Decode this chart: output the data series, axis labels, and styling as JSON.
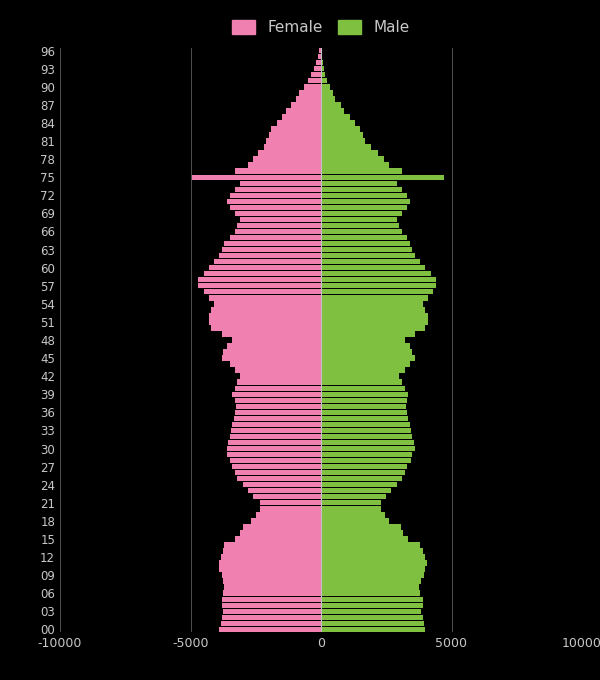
{
  "ages": [
    0,
    1,
    2,
    3,
    4,
    5,
    6,
    7,
    8,
    9,
    10,
    11,
    12,
    13,
    14,
    15,
    16,
    17,
    18,
    19,
    20,
    21,
    22,
    23,
    24,
    25,
    26,
    27,
    28,
    29,
    30,
    31,
    32,
    33,
    34,
    35,
    36,
    37,
    38,
    39,
    40,
    41,
    42,
    43,
    44,
    45,
    46,
    47,
    48,
    49,
    50,
    51,
    52,
    53,
    54,
    55,
    56,
    57,
    58,
    59,
    60,
    61,
    62,
    63,
    64,
    65,
    66,
    67,
    68,
    69,
    70,
    71,
    72,
    73,
    74,
    75,
    76,
    77,
    78,
    79,
    80,
    81,
    82,
    83,
    84,
    85,
    86,
    87,
    88,
    89,
    90,
    91,
    92,
    93,
    94,
    95,
    96
  ],
  "female": [
    3900,
    3850,
    3800,
    3750,
    3800,
    3800,
    3750,
    3700,
    3750,
    3800,
    3900,
    3900,
    3850,
    3750,
    3700,
    3300,
    3100,
    3000,
    2700,
    2500,
    2350,
    2350,
    2600,
    2800,
    3000,
    3200,
    3300,
    3400,
    3500,
    3600,
    3600,
    3550,
    3500,
    3450,
    3400,
    3350,
    3300,
    3250,
    3300,
    3400,
    3300,
    3200,
    3100,
    3300,
    3500,
    3800,
    3750,
    3600,
    3400,
    3800,
    4200,
    4300,
    4300,
    4200,
    4100,
    4300,
    4500,
    4700,
    4700,
    4500,
    4300,
    4100,
    3900,
    3800,
    3700,
    3500,
    3300,
    3200,
    3100,
    3300,
    3500,
    3600,
    3500,
    3300,
    3100,
    5000,
    3300,
    2800,
    2600,
    2400,
    2200,
    2100,
    2000,
    1900,
    1700,
    1500,
    1350,
    1150,
    950,
    850,
    650,
    500,
    380,
    270,
    190,
    110,
    60
  ],
  "male": [
    4000,
    3950,
    3900,
    3850,
    3900,
    3900,
    3800,
    3750,
    3850,
    3950,
    4000,
    4050,
    4000,
    3900,
    3800,
    3350,
    3150,
    3050,
    2600,
    2450,
    2300,
    2300,
    2500,
    2700,
    2900,
    3100,
    3200,
    3300,
    3450,
    3500,
    3600,
    3550,
    3500,
    3450,
    3400,
    3350,
    3300,
    3250,
    3300,
    3350,
    3200,
    3100,
    3000,
    3200,
    3400,
    3600,
    3500,
    3400,
    3200,
    3600,
    4000,
    4100,
    4100,
    4000,
    3900,
    4100,
    4300,
    4400,
    4400,
    4200,
    4000,
    3800,
    3600,
    3500,
    3400,
    3300,
    3100,
    3000,
    2900,
    3100,
    3300,
    3400,
    3300,
    3100,
    2900,
    4700,
    3100,
    2600,
    2400,
    2200,
    1900,
    1700,
    1600,
    1500,
    1300,
    1100,
    900,
    750,
    550,
    450,
    350,
    230,
    170,
    120,
    80,
    50,
    15
  ],
  "female_color": "#f080b0",
  "male_color": "#80c040",
  "background_color": "#000000",
  "text_color": "#c8c8c8",
  "grid_color": "#505050",
  "xlim": [
    -10000,
    10000
  ],
  "xticks": [
    -10000,
    -5000,
    0,
    5000,
    10000
  ],
  "xtick_labels": [
    "-10000",
    "-5000",
    "0",
    "5000",
    "10000"
  ],
  "ytick_labels": [
    "00",
    "03",
    "06",
    "09",
    "12",
    "15",
    "18",
    "21",
    "24",
    "27",
    "30",
    "33",
    "36",
    "39",
    "42",
    "45",
    "48",
    "51",
    "54",
    "57",
    "60",
    "63",
    "66",
    "69",
    "72",
    "75",
    "78",
    "81",
    "84",
    "87",
    "90",
    "93",
    "96"
  ],
  "ytick_positions": [
    0,
    3,
    6,
    9,
    12,
    15,
    18,
    21,
    24,
    27,
    30,
    33,
    36,
    39,
    42,
    45,
    48,
    51,
    54,
    57,
    60,
    63,
    66,
    69,
    72,
    75,
    78,
    81,
    84,
    87,
    90,
    93,
    96
  ],
  "female_label": "Female",
  "male_label": "Male",
  "bar_height": 0.9,
  "figsize": [
    6.0,
    6.8
  ],
  "dpi": 100
}
